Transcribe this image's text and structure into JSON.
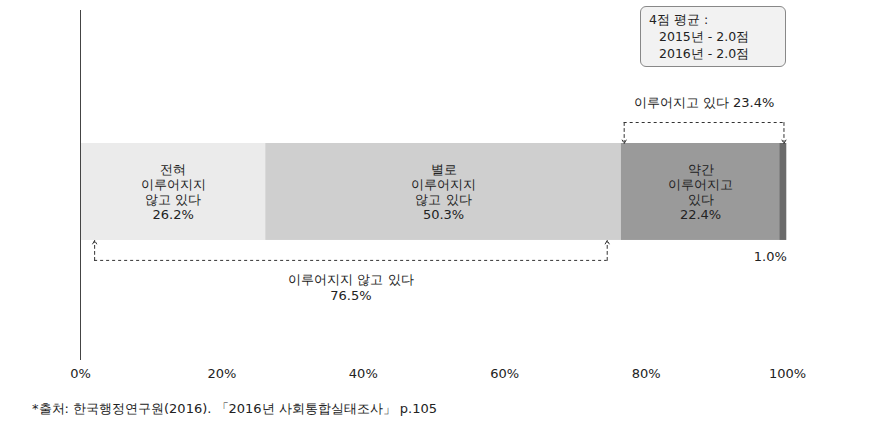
{
  "chart_data": {
    "type": "bar",
    "orientation": "horizontal",
    "stacked": true,
    "data_labels": true,
    "grid": false,
    "tick_labels": "x",
    "xlim": [
      0,
      100
    ],
    "xticks": [
      {
        "value": 0,
        "label": "0%"
      },
      {
        "value": 20,
        "label": "20%"
      },
      {
        "value": 40,
        "label": "40%"
      },
      {
        "value": 60,
        "label": "60%"
      },
      {
        "value": 80,
        "label": "80%"
      },
      {
        "value": 100,
        "label": "100%"
      }
    ],
    "series": [
      {
        "name": "전혀\n이루어지지\n않고 있다",
        "color": "#ebebeb",
        "values": [
          26.2
        ],
        "value_labels": [
          "26.2%"
        ]
      },
      {
        "name": "별로\n이루어지지\n않고 있다",
        "color": "#cfcfcf",
        "values": [
          50.3
        ],
        "value_labels": [
          "50.3%"
        ]
      },
      {
        "name": "약간\n이루어지고\n있다",
        "color": "#9a9a9a",
        "values": [
          22.4
        ],
        "value_labels": [
          "22.4%"
        ]
      },
      {
        "name": null,
        "color": "#6b6b6b",
        "values": [
          1.0
        ],
        "value_labels": [
          "1.0%"
        ]
      }
    ],
    "annotations": [
      {
        "label": "이루어지지 않고 있다",
        "value": 76.5,
        "value_label": "76.5%",
        "series": [
          0,
          1
        ]
      },
      {
        "label": "이루어지고 있다",
        "value": 23.4,
        "value_label": "23.4%",
        "series": [
          2,
          3
        ]
      }
    ],
    "note": {
      "title": "4점 평균 :",
      "lines": [
        "2015년 - 2.0점",
        "2016년 - 2.0점"
      ]
    },
    "source": "*출처: 한국행정연구원(2016). 「2016년 사회통합실태조사」 p.105"
  }
}
